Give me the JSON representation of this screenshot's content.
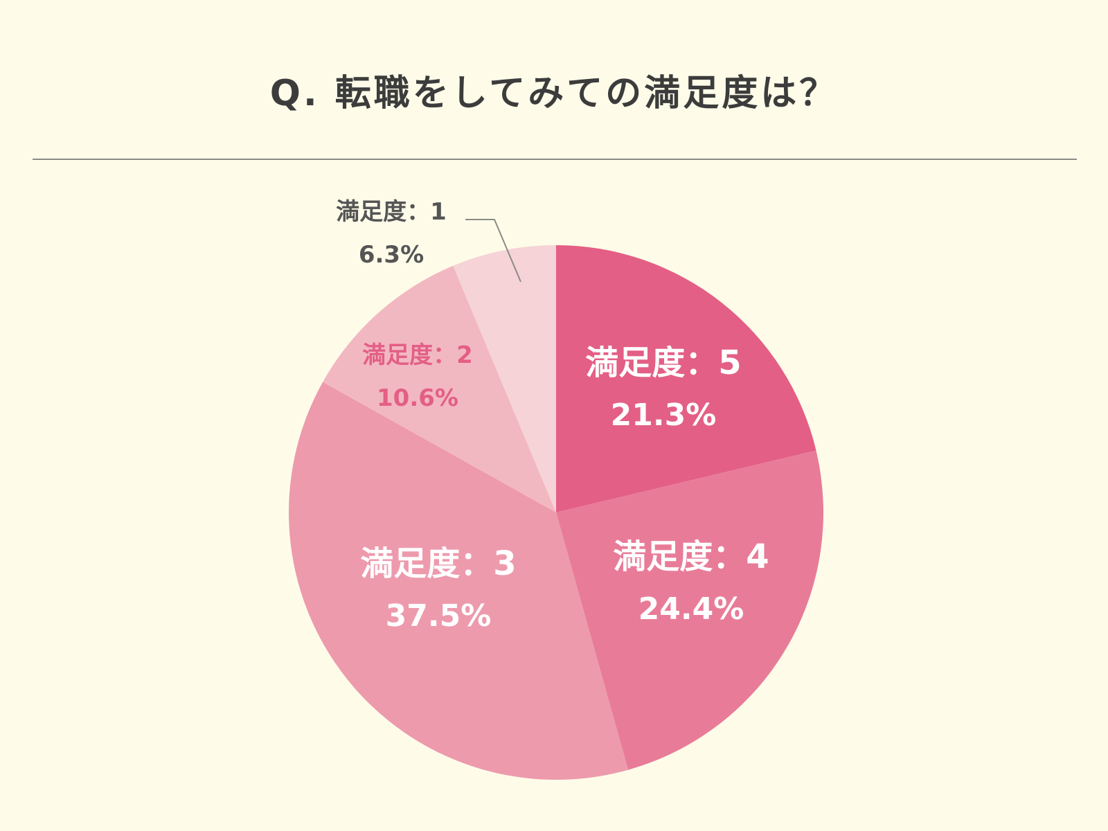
{
  "chart_data": {
    "type": "pie",
    "title": "Q. 転職をしてみての満足度は？",
    "categories": [
      "満足度：5",
      "満足度：4",
      "満足度：3",
      "満足度：2",
      "満足度：1"
    ],
    "values": [
      21.3,
      24.4,
      37.5,
      10.6,
      6.3
    ],
    "value_labels": [
      "21.3%",
      "24.4%",
      "37.5%",
      "10.6%",
      "6.3%"
    ],
    "colors": [
      "#e35f85",
      "#e87c98",
      "#ed9aad",
      "#f2b8c1",
      "#f6d3d6"
    ],
    "label_colors": [
      "#ffffff",
      "#ffffff",
      "#ffffff",
      "#e35f85",
      "#555555"
    ],
    "start_angle": "top",
    "direction": "clockwise",
    "legend": "none"
  }
}
